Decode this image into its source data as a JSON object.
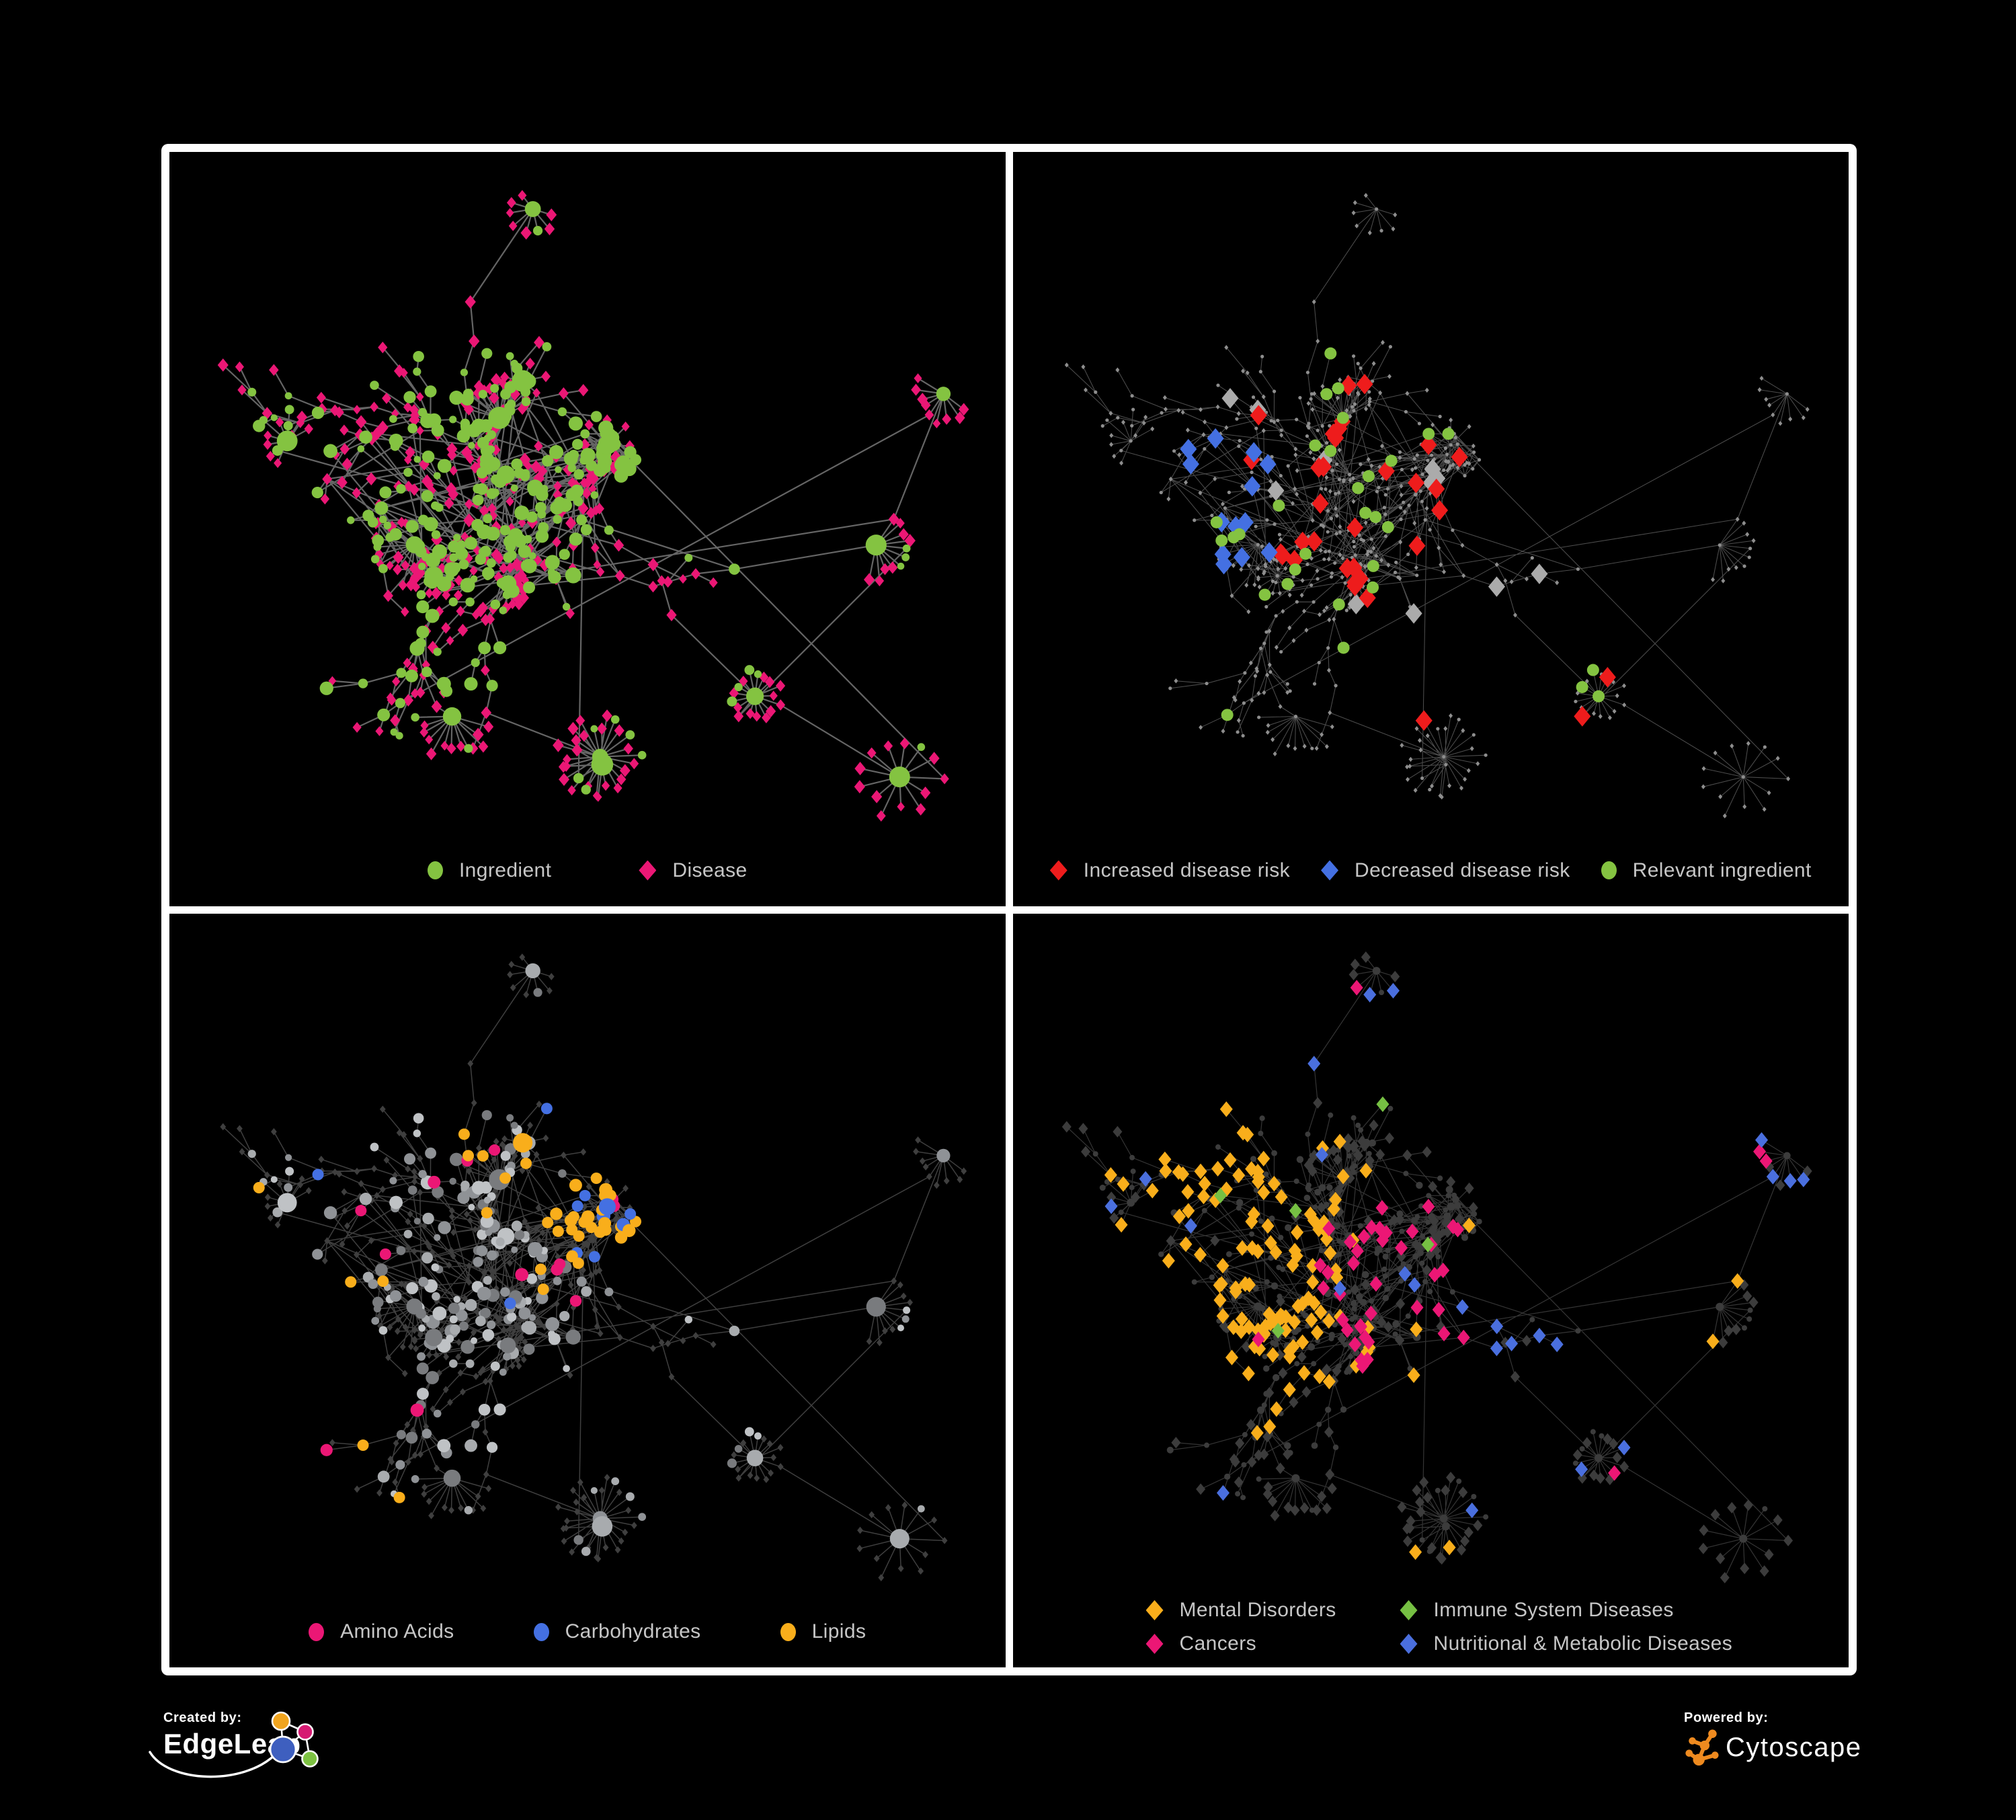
{
  "figure": {
    "background": "#000000",
    "frame_color": "#ffffff"
  },
  "panels": [
    {
      "name": "ingredient-disease-network",
      "legend": [
        {
          "label": "Ingredient",
          "shape": "circle",
          "color": "#84C341"
        },
        {
          "label": "Disease",
          "shape": "diamond",
          "color": "#EB1775"
        }
      ]
    },
    {
      "name": "disease-risk-network",
      "legend": [
        {
          "label": "Increased disease risk",
          "shape": "diamond",
          "color": "#EE1C1C"
        },
        {
          "label": "Decreased disease risk",
          "shape": "diamond",
          "color": "#4470E2"
        },
        {
          "label": "Relevant ingredient",
          "shape": "circle",
          "color": "#84C341"
        }
      ]
    },
    {
      "name": "nutrient-class-network",
      "legend": [
        {
          "label": "Amino Acids",
          "shape": "circle",
          "color": "#EB1775"
        },
        {
          "label": "Carbohydrates",
          "shape": "circle",
          "color": "#4470E2"
        },
        {
          "label": "Lipids",
          "shape": "circle",
          "color": "#F9AE1B"
        }
      ]
    },
    {
      "name": "disease-category-network",
      "legend": [
        {
          "label": "Mental Disorders",
          "shape": "diamond",
          "color": "#F9AE1B"
        },
        {
          "label": "Immune System Diseases",
          "shape": "diamond",
          "color": "#76C043"
        },
        {
          "label": "Cancers",
          "shape": "diamond",
          "color": "#EB1775"
        },
        {
          "label": "Nutritional & Metabolic Diseases",
          "shape": "diamond",
          "color": "#4A6FDE"
        }
      ]
    }
  ],
  "footer": {
    "created_by_label": "Created by:",
    "created_by_brand": "EdgeLeap",
    "powered_by_label": "Powered by:",
    "powered_by_brand": "Cytoscape",
    "edgeleap_colors": {
      "blue": "#3E5FBF",
      "orange": "#F0A41E",
      "pink": "#D61A72",
      "green": "#7DC242"
    },
    "cytoscape_orange": "#EE8A1F"
  },
  "network": {
    "seed": 1337,
    "base_node_color": "#8E8E8E",
    "dark_node_color": "#3C3C3C",
    "dark_diamond_color": "#3F3F3F",
    "edge_color": "#7E7E7E",
    "gray_circle_shades": [
      "#8F9296",
      "#A8ABAE",
      "#BFC2C5",
      "#797B7E"
    ],
    "highlight_gray": "#ABABAB"
  }
}
